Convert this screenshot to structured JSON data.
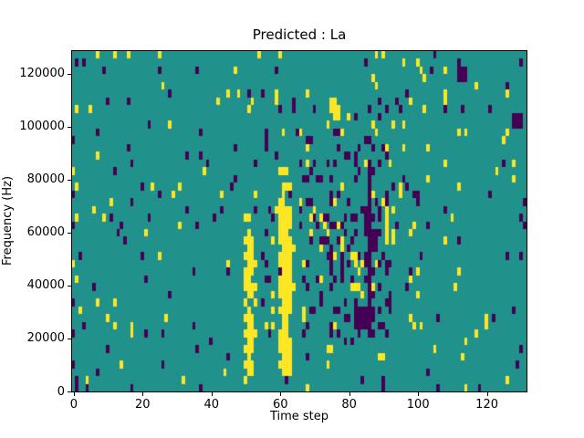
{
  "chart_data": {
    "type": "heatmap",
    "title": "Predicted : La",
    "xlabel": "Time step",
    "ylabel": "Frequency (Hz)",
    "x_ticks": [
      0,
      20,
      40,
      60,
      80,
      100,
      120
    ],
    "y_ticks": [
      0,
      20000,
      40000,
      60000,
      80000,
      100000,
      120000
    ],
    "x_range": [
      -0.5,
      131.5
    ],
    "y_range": [
      0,
      128500
    ],
    "grid": {
      "cols": 132,
      "rows": 44
    },
    "legend": null,
    "gridlines": false,
    "palette": {
      "background_mid_teal": "#21918c",
      "value_low_purple": "#440154",
      "value_high_yellow": "#fde725"
    },
    "noise_model": {
      "seed": 20,
      "regions": [
        {
          "name": "yellow-streak-t60",
          "c": [
            60,
            63
          ],
          "r": [
            2,
            26
          ],
          "p_high": 0.55,
          "p_low": 0.04
        },
        {
          "name": "yellow-streak-t50",
          "c": [
            50,
            53
          ],
          "r": [
            1,
            22
          ],
          "p_high": 0.34,
          "p_low": 0.03
        },
        {
          "name": "purple-line-t86",
          "c": [
            85,
            87
          ],
          "r": [
            6,
            28
          ],
          "p_high": 0.05,
          "p_low": 0.45
        },
        {
          "name": "purple-cluster",
          "c": [
            66,
            92
          ],
          "r": [
            6,
            33
          ],
          "p_high": 0.05,
          "p_low": 0.17
        },
        {
          "name": "mid-band",
          "c": [
            55,
            100
          ],
          "r": [
            6,
            38
          ],
          "p_high": 0.045,
          "p_low": 0.06
        },
        {
          "name": "left-edge-yellows",
          "c": [
            0,
            1
          ],
          "r": [
            14,
            28
          ],
          "p_high": 0.2,
          "p_low": 0.06
        },
        {
          "name": "baseline",
          "c": [
            0,
            131
          ],
          "r": [
            0,
            43
          ],
          "p_high": 0.022,
          "p_low": 0.022
        }
      ]
    },
    "features": [
      {
        "c": 61,
        "r": 2,
        "w": 1,
        "h": 24,
        "v": "high"
      },
      {
        "c": 62,
        "r": 4,
        "w": 1,
        "h": 20,
        "v": "high"
      },
      {
        "c": 63,
        "r": 10,
        "w": 1,
        "h": 9,
        "v": "high"
      },
      {
        "c": 51,
        "r": 2,
        "w": 1,
        "h": 8,
        "v": "high"
      },
      {
        "c": 51,
        "r": 12,
        "w": 1,
        "h": 9,
        "v": "high"
      },
      {
        "c": 52,
        "r": 5,
        "w": 1,
        "h": 4,
        "v": "high"
      },
      {
        "c": 52,
        "r": 15,
        "w": 1,
        "h": 5,
        "v": "high"
      },
      {
        "c": 86,
        "r": 7,
        "w": 1,
        "h": 20,
        "v": "low"
      },
      {
        "c": 82,
        "r": 8,
        "w": 5,
        "h": 3,
        "v": "low"
      },
      {
        "c": 75,
        "r": 36,
        "w": 2,
        "h": 2,
        "v": "high"
      },
      {
        "c": 112,
        "r": 40,
        "w": 3,
        "h": 2,
        "v": "low"
      },
      {
        "c": 128,
        "r": 34,
        "w": 3,
        "h": 2,
        "v": "low"
      },
      {
        "c": 91,
        "r": 19,
        "w": 1,
        "h": 5,
        "v": "high"
      },
      {
        "c": 1,
        "r": 0,
        "w": 1,
        "h": 2,
        "v": "low"
      },
      {
        "c": 90,
        "r": 0,
        "w": 1,
        "h": 2,
        "v": "low"
      },
      {
        "c": 68,
        "r": 0,
        "w": 1,
        "h": 1,
        "v": "high"
      },
      {
        "c": 7,
        "r": 43,
        "w": 1,
        "h": 1,
        "v": "high"
      },
      {
        "c": 12,
        "r": 43,
        "w": 1,
        "h": 1,
        "v": "high"
      },
      {
        "c": 3,
        "r": 42,
        "w": 1,
        "h": 1,
        "v": "low"
      }
    ]
  }
}
